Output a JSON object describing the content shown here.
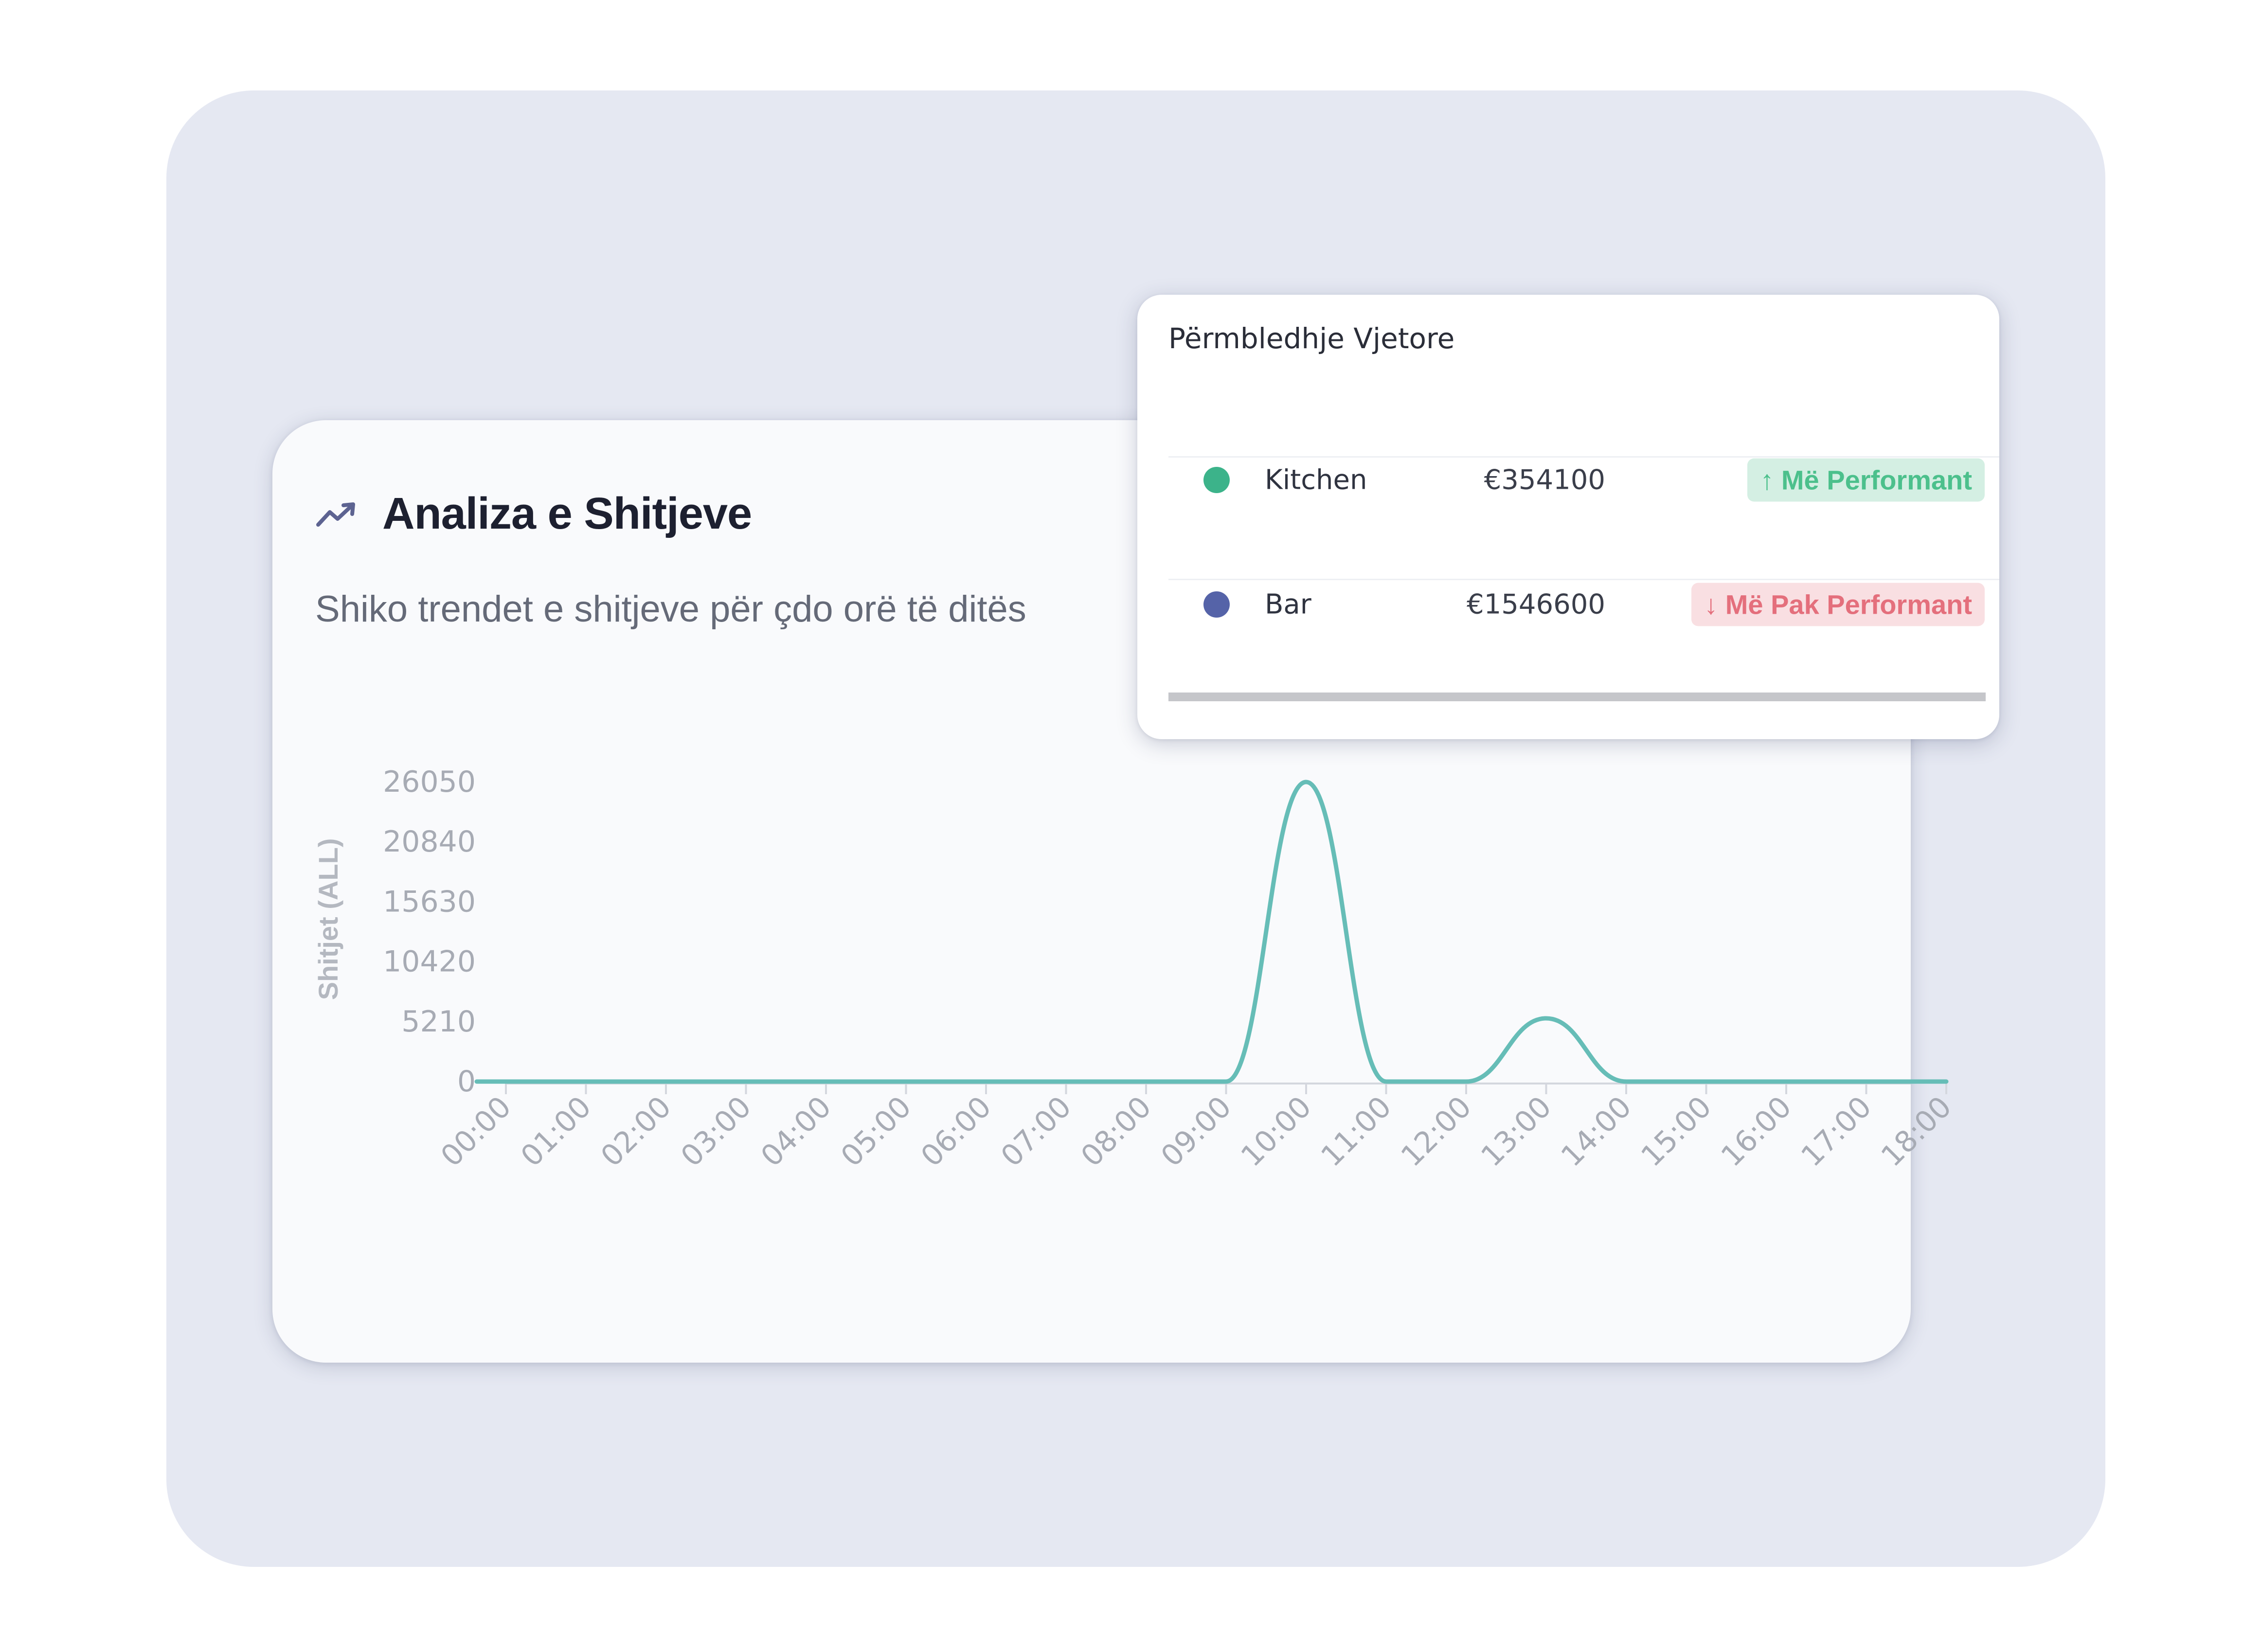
{
  "sales_card": {
    "title": "Analiza e Shitjeve",
    "subtitle": "Shiko trendet e shitjeve për çdo orë të ditës",
    "icon": "trending-up-icon"
  },
  "summary_popup": {
    "title": "Përmbledhje Vjetore",
    "rows": [
      {
        "name": "Kitchen",
        "value": "€354100",
        "badge": "Më Performant",
        "badge_icon": "arrow-up-icon",
        "dot_color": "#3cb38a",
        "status": "up"
      },
      {
        "name": "Bar",
        "value": "€1546600",
        "badge": "Më Pak Performant",
        "badge_icon": "arrow-down-icon",
        "dot_color": "#5563a8",
        "status": "down"
      }
    ]
  },
  "colors": {
    "line": "#66bdb7",
    "badge_up_text": "#4cc08c",
    "badge_down_text": "#e46f7c"
  },
  "chart_data": {
    "type": "line",
    "title": "",
    "xlabel": "",
    "ylabel": "Shitjet (ALL)",
    "x": [
      "00:00",
      "01:00",
      "02:00",
      "03:00",
      "04:00",
      "05:00",
      "06:00",
      "07:00",
      "08:00",
      "09:00",
      "10:00",
      "11:00",
      "12:00",
      "13:00",
      "14:00",
      "15:00",
      "16:00",
      "17:00",
      "18:00"
    ],
    "series": [
      {
        "values": [
          0,
          0,
          0,
          0,
          0,
          0,
          0,
          0,
          0,
          0,
          26050,
          0,
          0,
          5500,
          0,
          0,
          0,
          0,
          0
        ]
      }
    ],
    "yticks": [
      "26050",
      "20840",
      "15630",
      "10420",
      "5210",
      "0"
    ],
    "ylim": [
      0,
      26050
    ],
    "grid": false,
    "curve": "smooth"
  }
}
